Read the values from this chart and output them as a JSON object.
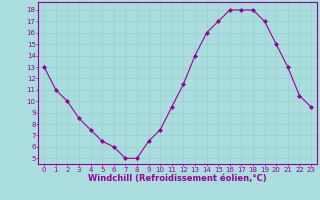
{
  "x": [
    0,
    1,
    2,
    3,
    4,
    5,
    6,
    7,
    8,
    9,
    10,
    11,
    12,
    13,
    14,
    15,
    16,
    17,
    18,
    19,
    20,
    21,
    22,
    23
  ],
  "y": [
    13,
    11,
    10,
    8.5,
    7.5,
    6.5,
    6.0,
    5.0,
    5.0,
    6.5,
    7.5,
    9.5,
    11.5,
    14,
    16,
    17,
    18,
    18,
    18,
    17,
    15,
    13,
    10.5,
    9.5
  ],
  "line_color": "#990099",
  "marker_color": "#990099",
  "bg_color": "#aadddd",
  "grid_color": "#99cccc",
  "xlabel": "Windchill (Refroidissement éolien,°C)",
  "xlabel_color": "#990099",
  "yticks": [
    5,
    6,
    7,
    8,
    9,
    10,
    11,
    12,
    13,
    14,
    15,
    16,
    17,
    18
  ],
  "xticks": [
    0,
    1,
    2,
    3,
    4,
    5,
    6,
    7,
    8,
    9,
    10,
    11,
    12,
    13,
    14,
    15,
    16,
    17,
    18,
    19,
    20,
    21,
    22,
    23
  ],
  "ylim": [
    4.5,
    18.7
  ],
  "xlim": [
    -0.5,
    23.5
  ],
  "tick_color": "#990099",
  "axis_color": "#990099",
  "tick_fontsize": 5,
  "xlabel_fontsize": 6
}
